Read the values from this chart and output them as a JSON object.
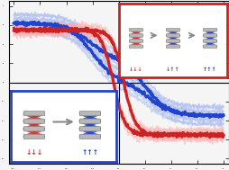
{
  "bg_color": "#f5f5f5",
  "main_axes_bg": "#f5f5f5",
  "blue_hysteresis_color": "#2244cc",
  "red_hysteresis_color": "#cc2222",
  "blue_faint": "#aabbee",
  "red_faint": "#ffaaaa",
  "blue_box_color": "#2244cc",
  "red_box_color": "#cc2222",
  "arrow_color": "#888888"
}
